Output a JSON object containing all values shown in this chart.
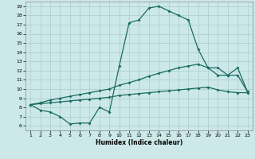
{
  "title": "",
  "xlabel": "Humidex (Indice chaleur)",
  "bg_color": "#cce8e8",
  "line_color": "#1a6b60",
  "grid_color": "#aacccc",
  "xlim": [
    0.5,
    23.5
  ],
  "ylim": [
    5.5,
    19.5
  ],
  "xticks": [
    1,
    2,
    3,
    4,
    5,
    6,
    7,
    8,
    9,
    10,
    11,
    12,
    13,
    14,
    15,
    16,
    17,
    18,
    19,
    20,
    21,
    22,
    23
  ],
  "yticks": [
    6,
    7,
    8,
    9,
    10,
    11,
    12,
    13,
    14,
    15,
    16,
    17,
    18,
    19
  ],
  "line1_x": [
    1,
    2,
    3,
    4,
    5,
    6,
    7,
    8,
    9,
    10,
    11,
    12,
    13,
    14,
    15,
    16,
    17,
    18,
    19,
    20,
    21,
    22,
    23
  ],
  "line1_y": [
    8.3,
    7.7,
    7.5,
    7.0,
    6.2,
    6.3,
    6.3,
    8.0,
    7.5,
    12.5,
    17.2,
    17.5,
    18.8,
    19.0,
    18.5,
    18.0,
    17.5,
    14.3,
    12.3,
    11.5,
    11.5,
    12.3,
    9.7
  ],
  "line2_x": [
    1,
    2,
    3,
    4,
    5,
    6,
    7,
    8,
    9,
    10,
    11,
    12,
    13,
    14,
    15,
    16,
    17,
    18,
    19,
    20,
    21,
    22,
    23
  ],
  "line2_y": [
    8.3,
    8.5,
    8.8,
    9.0,
    9.2,
    9.4,
    9.6,
    9.8,
    10.0,
    10.4,
    10.7,
    11.0,
    11.4,
    11.7,
    12.0,
    12.3,
    12.5,
    12.7,
    12.3,
    12.3,
    11.5,
    11.5,
    9.7
  ],
  "line3_x": [
    1,
    2,
    3,
    4,
    5,
    6,
    7,
    8,
    9,
    10,
    11,
    12,
    13,
    14,
    15,
    16,
    17,
    18,
    19,
    20,
    21,
    22,
    23
  ],
  "line3_y": [
    8.3,
    8.4,
    8.5,
    8.6,
    8.7,
    8.8,
    8.9,
    9.0,
    9.1,
    9.3,
    9.4,
    9.5,
    9.6,
    9.7,
    9.8,
    9.9,
    10.0,
    10.1,
    10.2,
    9.9,
    9.7,
    9.6,
    9.6
  ],
  "markersize": 2.0,
  "linewidth": 0.9
}
